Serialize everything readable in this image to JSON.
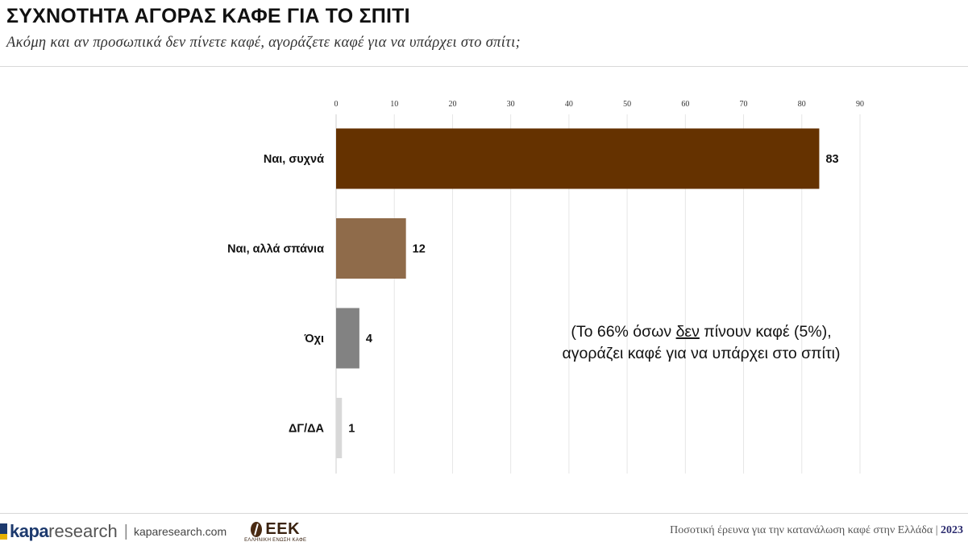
{
  "header": {
    "title": "ΣΥΧΝΟΤΗΤΑ ΑΓΟΡΑΣ ΚΑΦΕ ΓΙΑ ΤΟ ΣΠΙΤΙ",
    "subtitle": "Ακόμη και αν προσωπικά δεν πίνετε καφέ, αγοράζετε καφέ για να υπάρχει στο σπίτι;"
  },
  "chart_data": {
    "type": "bar",
    "orientation": "horizontal",
    "title": "",
    "xlabel": "",
    "ylabel": "",
    "categories": [
      "Ναι, συχνά",
      "Ναι, αλλά σπάνια",
      "Όχι",
      "ΔΓ/ΔΑ"
    ],
    "values": [
      83,
      12,
      4,
      1
    ],
    "data_labels": [
      "83",
      "12",
      "4",
      "1"
    ],
    "bar_colors": [
      "#653200",
      "#8f6b4a",
      "#828282",
      "#d8d8d8"
    ],
    "xlim": [
      0,
      90
    ],
    "ticks": [
      0,
      10,
      20,
      30,
      40,
      50,
      60,
      70,
      80,
      90
    ],
    "axis_position": "top",
    "grid": true,
    "legend": "none",
    "annotation": {
      "line1_before": "(Το 66% όσων ",
      "line1_underlined": "δεν",
      "line1_after": " πίνουν καφέ (5%),",
      "line2": "αγοράζει καφέ για να υπάρχει στο σπίτι)"
    }
  },
  "footer": {
    "brand_bold": "kapa",
    "brand_light": "research",
    "separator": "|",
    "website": "kaparesearch.com",
    "partner_logo": "ΕΕΚ",
    "partner_subtitle": "ΕΛΛΗΝΙΚΗ ΕΝΩΣΗ ΚΑΦΕ",
    "survey_text": "Ποσοτική έρευνα για την κατανάλωση καφέ στην Ελλάδα |",
    "year": "2023"
  }
}
